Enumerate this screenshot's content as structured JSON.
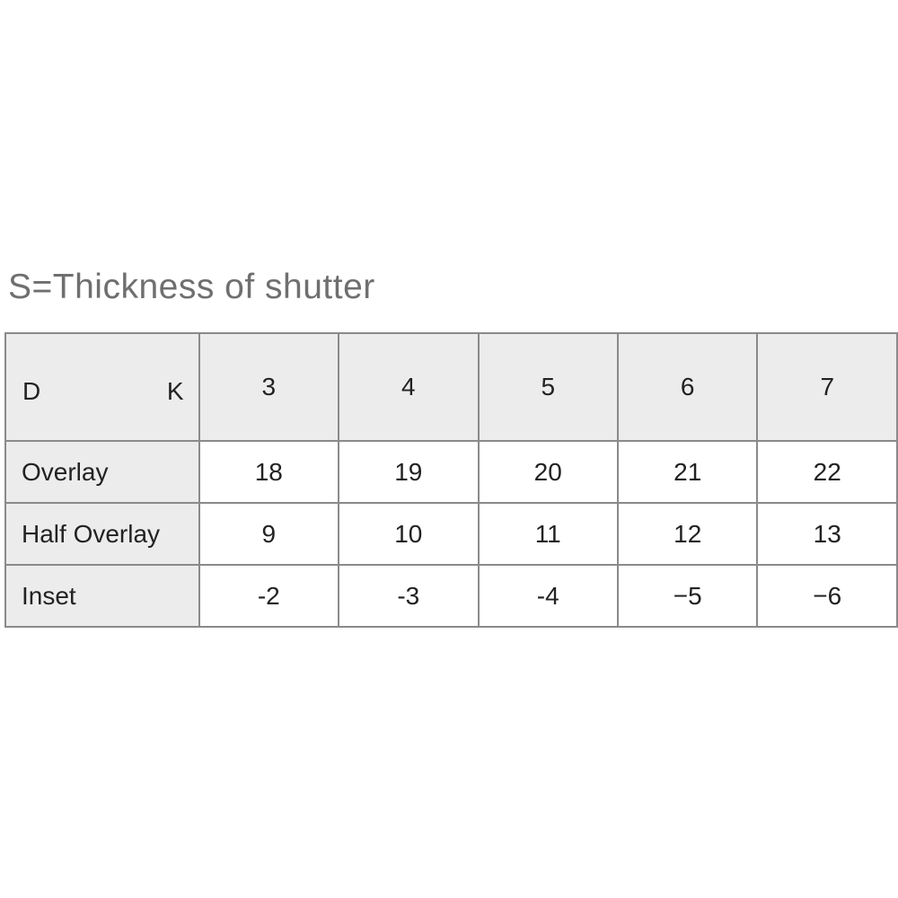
{
  "title": "S=Thickness of shutter",
  "table": {
    "corner": {
      "row_axis": "D",
      "col_axis": "K"
    },
    "columns": [
      "3",
      "4",
      "5",
      "6",
      "7"
    ],
    "rows": [
      {
        "label": "Overlay",
        "values": [
          "18",
          "19",
          "20",
          "21",
          "22"
        ]
      },
      {
        "label": "Half Overlay",
        "values": [
          "9",
          "10",
          "11",
          "12",
          "13"
        ]
      },
      {
        "label": "Inset",
        "values": [
          "-2",
          "-3",
          "-4",
          "−5",
          "−6"
        ]
      }
    ]
  },
  "colors": {
    "header_bg": "#ececec",
    "border": "#8a8a8a",
    "title": "#6f6f6f"
  }
}
